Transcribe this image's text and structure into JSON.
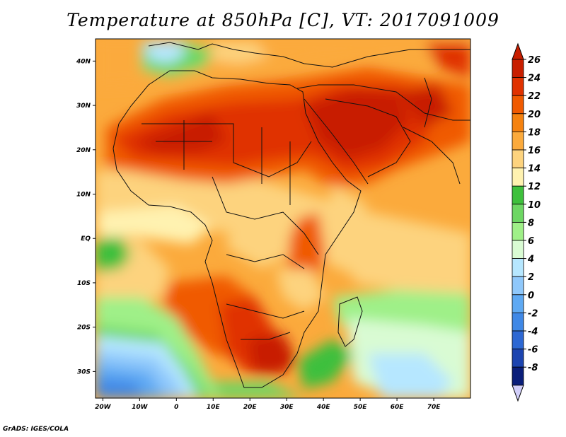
{
  "title": "Temperature at 850hPa [C], VT: 2017091009",
  "credit": "GrADS: IGES/COLA",
  "map": {
    "lon_range": [
      -22,
      80
    ],
    "lat_range": [
      -36,
      45
    ],
    "lat_ticks": [
      {
        "value": 40,
        "label": "40N"
      },
      {
        "value": 30,
        "label": "30N"
      },
      {
        "value": 20,
        "label": "20N"
      },
      {
        "value": 10,
        "label": "10N"
      },
      {
        "value": 0,
        "label": "EQ"
      },
      {
        "value": -10,
        "label": "10S"
      },
      {
        "value": -20,
        "label": "20S"
      },
      {
        "value": -30,
        "label": "30S"
      }
    ],
    "lon_ticks": [
      {
        "value": -20,
        "label": "20W"
      },
      {
        "value": -10,
        "label": "10W"
      },
      {
        "value": 0,
        "label": "0"
      },
      {
        "value": 10,
        "label": "10E"
      },
      {
        "value": 20,
        "label": "20E"
      },
      {
        "value": 30,
        "label": "30E"
      },
      {
        "value": 40,
        "label": "40E"
      },
      {
        "value": 50,
        "label": "50E"
      },
      {
        "value": 60,
        "label": "60E"
      },
      {
        "value": 70,
        "label": "70E"
      }
    ]
  },
  "colorbar": {
    "levels": [
      "26",
      "24",
      "22",
      "20",
      "18",
      "16",
      "14",
      "12",
      "10",
      "8",
      "6",
      "4",
      "2",
      "0",
      "-2",
      "-4",
      "-6",
      "-8"
    ],
    "colors": [
      "#c81e00",
      "#e03200",
      "#f05a00",
      "#f5820f",
      "#fbaa3c",
      "#fdd37e",
      "#fff2b0",
      "#3ec03c",
      "#6dd763",
      "#9ff088",
      "#d9fbd3",
      "#b6e7ff",
      "#8fc8fb",
      "#5ea9f3",
      "#3f88e6",
      "#2d68d3",
      "#1c44b0",
      "#0a1e7a"
    ],
    "top_arrow_color": "#c81e00",
    "bottom_arrow_color": "#d2cffa"
  }
}
